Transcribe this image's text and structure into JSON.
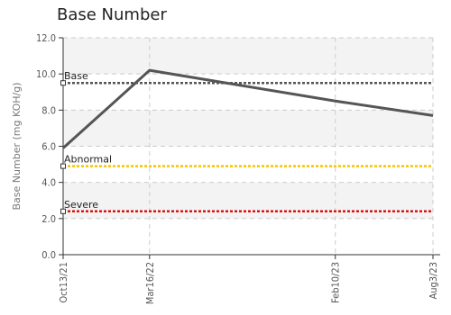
{
  "chart_data": {
    "type": "line",
    "title": "Base Number",
    "xlabel": "",
    "ylabel": "Base Number (mg KOH/g)",
    "ylim": [
      0,
      12
    ],
    "yticks": [
      "0.0",
      "2.0",
      "4.0",
      "6.0",
      "8.0",
      "10.0",
      "12.0"
    ],
    "categories": [
      "Oct13/21",
      "Mar16/22",
      "Feb10/23",
      "Aug3/23"
    ],
    "x_days": [
      0,
      154,
      485,
      659
    ],
    "series": [
      {
        "values": [
          5.9,
          10.2,
          8.5,
          7.7
        ],
        "color": "#555555"
      }
    ],
    "reference_lines": [
      {
        "label": "Base",
        "value": 9.5,
        "color": "#555555"
      },
      {
        "label": "Abnormal",
        "value": 4.9,
        "color": "#f5c400"
      },
      {
        "label": "Severe",
        "value": 2.4,
        "color": "#e01010"
      }
    ],
    "grid": true,
    "banded_background": true
  }
}
